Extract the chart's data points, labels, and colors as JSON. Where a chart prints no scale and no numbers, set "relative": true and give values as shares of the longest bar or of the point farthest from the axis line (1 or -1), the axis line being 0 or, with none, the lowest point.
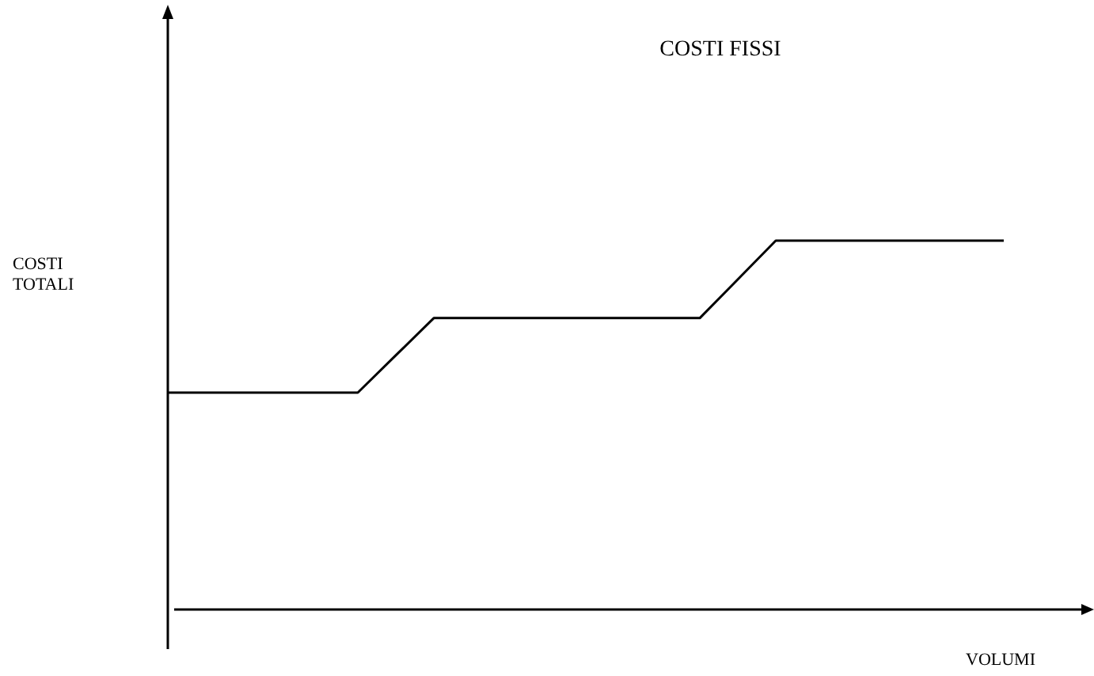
{
  "chart_data": {
    "type": "line",
    "title": "COSTI FISSI",
    "xlabel": "VOLUMI",
    "ylabel": "COSTI\nTOTALI",
    "relative": true,
    "categories": [
      null,
      null,
      null,
      null,
      null,
      null,
      null,
      null,
      null,
      null,
      null,
      null,
      null,
      null,
      null,
      null,
      null,
      null,
      null,
      null,
      null,
      null,
      null
    ],
    "series": [
      {
        "color": "#000000",
        "values": [
          0.588,
          0.588,
          0.588,
          0.588,
          0.588,
          0.588,
          0.689,
          0.79,
          0.79,
          0.79,
          0.79,
          0.79,
          0.79,
          0.79,
          0.79,
          0.895,
          1,
          1,
          1,
          1,
          1,
          1,
          1
        ]
      }
    ],
    "marker": "none",
    "line_style": "solid"
  }
}
